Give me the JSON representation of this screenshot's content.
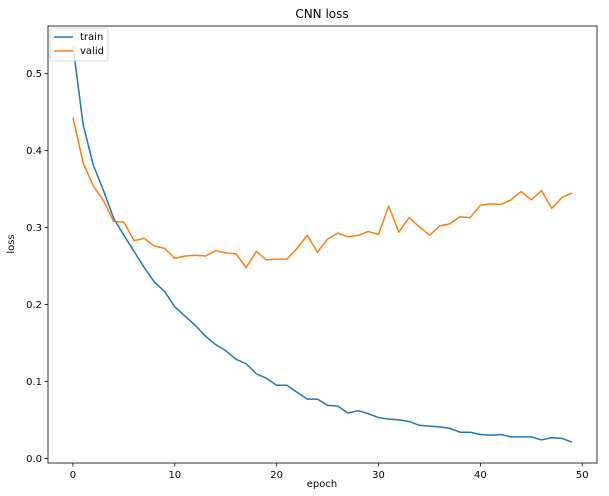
{
  "chart_data": {
    "type": "line",
    "title": "CNN loss",
    "xlabel": "epoch",
    "ylabel": "loss",
    "xlim": [
      -2.45,
      51.45
    ],
    "ylim": [
      -0.006,
      0.562
    ],
    "xticks": [
      0,
      10,
      20,
      30,
      40,
      50
    ],
    "yticks": [
      0.0,
      0.1,
      0.2,
      0.3,
      0.4,
      0.5
    ],
    "xtick_labels": [
      "0",
      "10",
      "20",
      "30",
      "40",
      "50"
    ],
    "ytick_labels": [
      "0.0",
      "0.1",
      "0.2",
      "0.3",
      "0.4",
      "0.5"
    ],
    "grid": false,
    "legend_position": "top-left",
    "x": [
      0,
      1,
      2,
      3,
      4,
      5,
      6,
      7,
      8,
      9,
      10,
      11,
      12,
      13,
      14,
      15,
      16,
      17,
      18,
      19,
      20,
      21,
      22,
      23,
      24,
      25,
      26,
      27,
      28,
      29,
      30,
      31,
      32,
      33,
      34,
      35,
      36,
      37,
      38,
      39,
      40,
      41,
      42,
      43,
      44,
      45,
      46,
      47,
      48,
      49
    ],
    "series": [
      {
        "name": "train",
        "color": "#1f77b4",
        "values": [
          0.536,
          0.434,
          0.381,
          0.348,
          0.312,
          0.29,
          0.269,
          0.248,
          0.229,
          0.217,
          0.197,
          0.185,
          0.173,
          0.159,
          0.148,
          0.14,
          0.129,
          0.123,
          0.11,
          0.104,
          0.095,
          0.095,
          0.086,
          0.077,
          0.077,
          0.069,
          0.068,
          0.059,
          0.062,
          0.058,
          0.053,
          0.051,
          0.05,
          0.048,
          0.043,
          0.042,
          0.041,
          0.039,
          0.034,
          0.034,
          0.031,
          0.03,
          0.031,
          0.028,
          0.028,
          0.028,
          0.024,
          0.027,
          0.026,
          0.021
        ]
      },
      {
        "name": "valid",
        "color": "#ff7f0e",
        "values": [
          0.443,
          0.384,
          0.354,
          0.335,
          0.308,
          0.307,
          0.283,
          0.286,
          0.276,
          0.273,
          0.26,
          0.263,
          0.264,
          0.263,
          0.27,
          0.267,
          0.266,
          0.248,
          0.269,
          0.258,
          0.259,
          0.259,
          0.273,
          0.29,
          0.268,
          0.285,
          0.293,
          0.288,
          0.29,
          0.295,
          0.291,
          0.328,
          0.294,
          0.313,
          0.301,
          0.29,
          0.302,
          0.305,
          0.314,
          0.313,
          0.329,
          0.331,
          0.33,
          0.336,
          0.347,
          0.336,
          0.348,
          0.325,
          0.339,
          0.345
        ]
      }
    ]
  }
}
